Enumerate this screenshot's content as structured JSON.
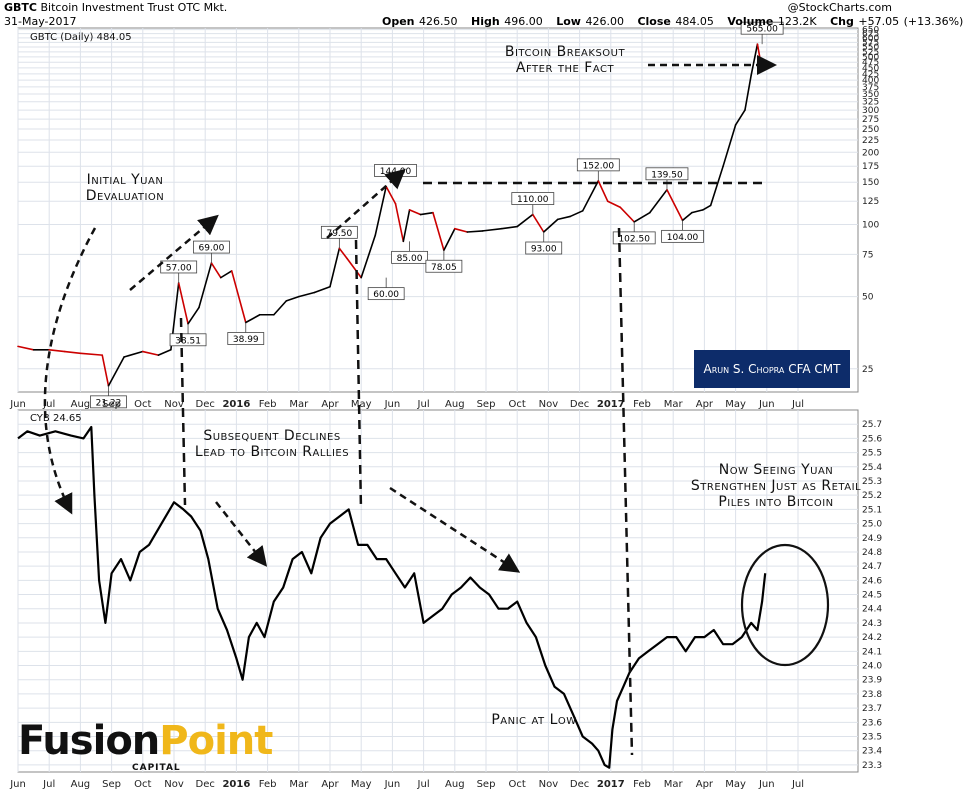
{
  "header": {
    "symbol": "GBTC",
    "name": "Bitcoin Investment Trust",
    "exchange": "OTC Mkt.",
    "source": "@StockCharts.com",
    "date": "31-May-2017",
    "open_label": "Open",
    "open": "426.50",
    "high_label": "High",
    "high": "496.00",
    "low_label": "Low",
    "low": "426.00",
    "close_label": "Close",
    "close": "484.05",
    "volume_label": "Volume",
    "volume": "123.2K",
    "chg_label": "Chg",
    "chg": "+57.05 (+13.36%)"
  },
  "annotations": {
    "initial": "Initial Yuan Devaluation",
    "breakout": "Bitcoin Breaksout After the Fact",
    "declines": "Subsequent Declines Lead to Bitcoin Rallies",
    "seeing": "Now Seeing Yuan Strengthen Just as Retail Piles into Bitcoin",
    "panic": "Panic at Low",
    "credit": "Arun S. Chopra CFA CMT"
  },
  "logo": {
    "word1": "Fusion",
    "word2": "Point",
    "sub": "CAPITAL"
  },
  "colors": {
    "up": "#000000",
    "down": "#cc0000",
    "badge": "#0d2c6a",
    "logo_accent": "#f0b71a",
    "grid": "#dde2ea"
  },
  "chart_data": [
    {
      "type": "line",
      "title": "GBTC (Daily) 484.05",
      "scale": "log",
      "ylim": [
        20,
        660
      ],
      "y_ticks": [
        25,
        50,
        75,
        100,
        125,
        150,
        175,
        200,
        225,
        250,
        275,
        300,
        325,
        350,
        375,
        400,
        425,
        450,
        475,
        500,
        525,
        550,
        575,
        600,
        625,
        650
      ],
      "x_tick_labels": [
        "Jun",
        "Jul",
        "Aug",
        "Sep",
        "Oct",
        "Nov",
        "Dec",
        "2016",
        "Feb",
        "Mar",
        "Apr",
        "May",
        "Jun",
        "Jul",
        "Aug",
        "Sep",
        "Oct",
        "Nov",
        "Dec",
        "2017",
        "Feb",
        "Mar",
        "Apr",
        "May",
        "Jun",
        "Jul"
      ],
      "x_months": [
        0,
        1,
        2,
        3,
        4,
        5,
        6,
        7,
        8,
        9,
        10,
        11,
        12,
        13,
        14,
        15,
        16,
        17,
        18,
        19,
        20,
        21,
        22,
        23,
        24,
        25
      ],
      "series": [
        {
          "x": [
            0,
            0.5,
            1.0,
            1.5,
            2.0,
            2.7,
            2.9,
            3.4,
            4.0,
            4.5,
            4.9,
            5.15,
            5.45,
            5.8,
            6.2,
            6.5,
            6.85,
            7.3,
            7.75,
            8.2,
            8.6,
            9.0,
            9.5,
            10.0,
            10.3,
            10.55,
            11.0,
            11.45,
            11.8,
            12.1,
            12.35,
            12.55,
            12.9,
            13.3,
            13.65,
            14.0,
            14.4,
            14.9,
            15.5,
            16.0,
            16.5,
            16.85,
            17.3,
            17.7,
            18.1,
            18.6,
            18.9,
            19.3,
            19.75,
            20.25,
            20.8,
            21.3,
            21.6,
            21.95,
            22.2,
            22.6,
            23.0,
            23.3,
            23.5,
            23.7,
            23.85,
            23.95
          ],
          "y": [
            31,
            30,
            30,
            29.5,
            29,
            28.5,
            21.22,
            28,
            29.5,
            28.5,
            30,
            57,
            38.51,
            45,
            69,
            60,
            64,
            38.99,
            42,
            42,
            48,
            50,
            52,
            55,
            79.5,
            72,
            60,
            90,
            144,
            122,
            85,
            115,
            110,
            112,
            78.05,
            96,
            93,
            94,
            96,
            98,
            110,
            93,
            105,
            108,
            114,
            152,
            125,
            118,
            102.5,
            112,
            139.5,
            104,
            112,
            115,
            120,
            175,
            260,
            300,
            420,
            565,
            440,
            484
          ]
        }
      ],
      "data_labels": [
        {
          "x": 2.9,
          "y": 21.22,
          "text": "21.22",
          "pos": "below"
        },
        {
          "x": 5.15,
          "y": 57,
          "text": "57.00",
          "pos": "above"
        },
        {
          "x": 5.45,
          "y": 38.51,
          "text": "38.51",
          "pos": "below"
        },
        {
          "x": 6.2,
          "y": 69,
          "text": "69.00",
          "pos": "above"
        },
        {
          "x": 7.3,
          "y": 38.99,
          "text": "38.99",
          "pos": "below"
        },
        {
          "x": 10.3,
          "y": 79.5,
          "text": "79.50",
          "pos": "above"
        },
        {
          "x": 11.8,
          "y": 60,
          "text": "60.00",
          "pos": "below"
        },
        {
          "x": 12.1,
          "y": 144,
          "text": "144.00",
          "pos": "above"
        },
        {
          "x": 12.55,
          "y": 85,
          "text": "85.00",
          "pos": "below"
        },
        {
          "x": 13.65,
          "y": 78.05,
          "text": "78.05",
          "pos": "below"
        },
        {
          "x": 16.5,
          "y": 110,
          "text": "110.00",
          "pos": "above"
        },
        {
          "x": 16.85,
          "y": 93,
          "text": "93.00",
          "pos": "below"
        },
        {
          "x": 18.6,
          "y": 152,
          "text": "152.00",
          "pos": "above"
        },
        {
          "x": 19.75,
          "y": 102.5,
          "text": "102.50",
          "pos": "below"
        },
        {
          "x": 20.8,
          "y": 139.5,
          "text": "139.50",
          "pos": "above"
        },
        {
          "x": 21.3,
          "y": 104,
          "text": "104.00",
          "pos": "below"
        },
        {
          "x": 23.85,
          "y": 565,
          "text": "565.00",
          "pos": "above"
        }
      ]
    },
    {
      "type": "line",
      "title": "CYB 24.65",
      "ylim": [
        23.25,
        25.8
      ],
      "y_ticks": [
        23.3,
        23.4,
        23.5,
        23.6,
        23.7,
        23.8,
        23.9,
        24.0,
        24.1,
        24.2,
        24.3,
        24.4,
        24.5,
        24.6,
        24.7,
        24.8,
        24.9,
        25.0,
        25.1,
        25.2,
        25.3,
        25.4,
        25.5,
        25.6,
        25.7
      ],
      "x_tick_labels": [
        "Jun",
        "Jul",
        "Aug",
        "Sep",
        "Oct",
        "Nov",
        "Dec",
        "2016",
        "Feb",
        "Mar",
        "Apr",
        "May",
        "Jun",
        "Jul",
        "Aug",
        "Sep",
        "Oct",
        "Nov",
        "Dec",
        "2017",
        "Feb",
        "Mar",
        "Apr",
        "May",
        "Jun",
        "Jul"
      ],
      "x_months": [
        0,
        1,
        2,
        3,
        4,
        5,
        6,
        7,
        8,
        9,
        10,
        11,
        12,
        13,
        14,
        15,
        16,
        17,
        18,
        19,
        20,
        21,
        22,
        23,
        24,
        25
      ],
      "series": [
        {
          "x": [
            0,
            0.3,
            0.7,
            1.2,
            1.7,
            2.1,
            2.35,
            2.45,
            2.6,
            2.8,
            3.0,
            3.3,
            3.6,
            3.9,
            4.2,
            4.6,
            5.0,
            5.3,
            5.55,
            5.85,
            6.1,
            6.4,
            6.7,
            7.0,
            7.2,
            7.4,
            7.65,
            7.9,
            8.2,
            8.5,
            8.8,
            9.1,
            9.4,
            9.7,
            10.0,
            10.3,
            10.6,
            10.9,
            11.2,
            11.5,
            11.8,
            12.1,
            12.4,
            12.7,
            13.0,
            13.3,
            13.6,
            13.9,
            14.2,
            14.5,
            14.8,
            15.1,
            15.4,
            15.7,
            16.0,
            16.3,
            16.6,
            16.9,
            17.2,
            17.5,
            17.8,
            18.1,
            18.4,
            18.6,
            18.8,
            18.95,
            19.05,
            19.2,
            19.4,
            19.6,
            19.9,
            20.2,
            20.5,
            20.8,
            21.1,
            21.4,
            21.7,
            22.0,
            22.3,
            22.6,
            22.9,
            23.2,
            23.5,
            23.7,
            23.85,
            23.95
          ],
          "y": [
            25.6,
            25.65,
            25.62,
            25.65,
            25.62,
            25.6,
            25.68,
            25.2,
            24.6,
            24.3,
            24.65,
            24.75,
            24.6,
            24.8,
            24.85,
            25.0,
            25.15,
            25.1,
            25.05,
            24.95,
            24.75,
            24.4,
            24.25,
            24.05,
            23.9,
            24.2,
            24.3,
            24.2,
            24.45,
            24.55,
            24.75,
            24.8,
            24.65,
            24.9,
            25.0,
            25.05,
            25.1,
            24.85,
            24.85,
            24.75,
            24.75,
            24.65,
            24.55,
            24.65,
            24.3,
            24.35,
            24.4,
            24.5,
            24.55,
            24.62,
            24.55,
            24.5,
            24.4,
            24.4,
            24.45,
            24.3,
            24.2,
            24.0,
            23.85,
            23.8,
            23.65,
            23.5,
            23.45,
            23.4,
            23.3,
            23.28,
            23.55,
            23.75,
            23.85,
            23.95,
            24.05,
            24.1,
            24.15,
            24.2,
            24.2,
            24.1,
            24.2,
            24.2,
            24.25,
            24.15,
            24.15,
            24.2,
            24.3,
            24.25,
            24.45,
            24.65
          ]
        }
      ]
    }
  ]
}
